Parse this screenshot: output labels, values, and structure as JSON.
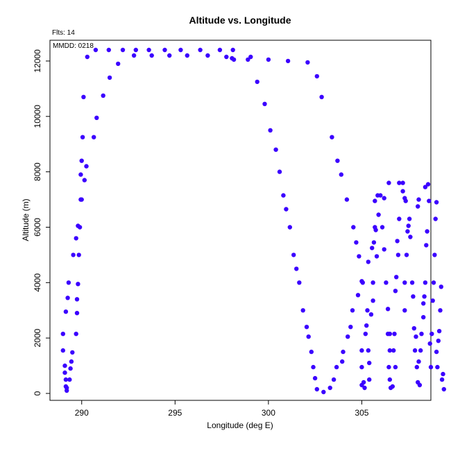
{
  "header": {
    "flights_label": "Flts: 14",
    "date_label": "MMDD: 0218"
  },
  "colors": {
    "point": "#3b00ff",
    "axis": "#000000",
    "background": "#ffffff"
  },
  "chart_data": {
    "type": "scatter",
    "title": "Altitude vs. Longitude",
    "xlabel": "Longitude (deg E)",
    "ylabel": "Altitude (m)",
    "xlim": [
      288.3,
      308.7
    ],
    "ylim": [
      -250,
      12750
    ],
    "xticks": [
      290,
      295,
      300,
      305
    ],
    "yticks": [
      0,
      2000,
      4000,
      6000,
      8000,
      10000,
      12000
    ],
    "grid": false,
    "legend": "none",
    "points": [
      [
        289.0,
        2150
      ],
      [
        289.0,
        1550
      ],
      [
        289.1,
        1000
      ],
      [
        289.1,
        750
      ],
      [
        289.15,
        500
      ],
      [
        289.15,
        250
      ],
      [
        289.2,
        100
      ],
      [
        289.2,
        200
      ],
      [
        289.15,
        2950
      ],
      [
        289.25,
        3450
      ],
      [
        289.3,
        4000
      ],
      [
        289.35,
        500
      ],
      [
        289.4,
        900
      ],
      [
        289.45,
        1150
      ],
      [
        289.5,
        1480
      ],
      [
        289.55,
        5000
      ],
      [
        289.7,
        5600
      ],
      [
        289.7,
        2150
      ],
      [
        289.75,
        2900
      ],
      [
        289.75,
        3400
      ],
      [
        289.8,
        3950
      ],
      [
        289.85,
        5000
      ],
      [
        289.8,
        6050
      ],
      [
        289.9,
        6000
      ],
      [
        289.95,
        7000
      ],
      [
        290.0,
        7000
      ],
      [
        289.95,
        7900
      ],
      [
        290.0,
        8400
      ],
      [
        290.05,
        9250
      ],
      [
        290.15,
        7700
      ],
      [
        290.25,
        8200
      ],
      [
        290.1,
        10700
      ],
      [
        290.3,
        12150
      ],
      [
        290.65,
        9250
      ],
      [
        290.8,
        9950
      ],
      [
        290.75,
        12400
      ],
      [
        291.15,
        10750
      ],
      [
        291.5,
        11400
      ],
      [
        291.45,
        12400
      ],
      [
        291.95,
        11900
      ],
      [
        292.2,
        12400
      ],
      [
        292.8,
        12200
      ],
      [
        292.9,
        12400
      ],
      [
        293.6,
        12400
      ],
      [
        293.75,
        12200
      ],
      [
        294.45,
        12400
      ],
      [
        294.7,
        12200
      ],
      [
        295.3,
        12400
      ],
      [
        295.65,
        12200
      ],
      [
        296.35,
        12400
      ],
      [
        296.75,
        12200
      ],
      [
        297.4,
        12400
      ],
      [
        297.75,
        12150
      ],
      [
        298.05,
        12100
      ],
      [
        298.1,
        12400
      ],
      [
        298.15,
        12050
      ],
      [
        298.9,
        12050
      ],
      [
        299.05,
        12150
      ],
      [
        299.4,
        11250
      ],
      [
        299.8,
        10450
      ],
      [
        300.0,
        12050
      ],
      [
        300.1,
        9500
      ],
      [
        300.4,
        8800
      ],
      [
        300.6,
        8000
      ],
      [
        300.8,
        7150
      ],
      [
        300.95,
        6650
      ],
      [
        301.05,
        12000
      ],
      [
        301.15,
        6000
      ],
      [
        301.35,
        5000
      ],
      [
        301.5,
        4500
      ],
      [
        301.65,
        4000
      ],
      [
        301.85,
        3000
      ],
      [
        302.05,
        2400
      ],
      [
        302.1,
        11950
      ],
      [
        302.15,
        2050
      ],
      [
        302.3,
        1500
      ],
      [
        302.4,
        950
      ],
      [
        302.5,
        550
      ],
      [
        302.6,
        150
      ],
      [
        302.6,
        11450
      ],
      [
        302.85,
        10700
      ],
      [
        302.95,
        50
      ],
      [
        303.3,
        200
      ],
      [
        303.4,
        9250
      ],
      [
        303.5,
        500
      ],
      [
        303.65,
        950
      ],
      [
        303.7,
        8400
      ],
      [
        303.9,
        7900
      ],
      [
        303.95,
        1150
      ],
      [
        304.0,
        1500
      ],
      [
        304.25,
        2050
      ],
      [
        304.2,
        7000
      ],
      [
        304.4,
        2400
      ],
      [
        304.5,
        3000
      ],
      [
        304.55,
        6000
      ],
      [
        304.7,
        5450
      ],
      [
        304.8,
        3550
      ],
      [
        304.85,
        4950
      ],
      [
        305.0,
        4050
      ],
      [
        305.0,
        1550
      ],
      [
        305.0,
        950
      ],
      [
        305.0,
        300
      ],
      [
        305.05,
        4000
      ],
      [
        305.1,
        400
      ],
      [
        305.15,
        200
      ],
      [
        305.2,
        2150
      ],
      [
        305.25,
        2450
      ],
      [
        305.3,
        3000
      ],
      [
        305.35,
        4750
      ],
      [
        305.35,
        1550
      ],
      [
        305.4,
        1100
      ],
      [
        305.4,
        500
      ],
      [
        305.5,
        2850
      ],
      [
        305.55,
        5250
      ],
      [
        305.6,
        3350
      ],
      [
        305.6,
        4000
      ],
      [
        305.65,
        5450
      ],
      [
        305.7,
        6000
      ],
      [
        305.75,
        5900
      ],
      [
        305.8,
        4950
      ],
      [
        305.9,
        6450
      ],
      [
        305.85,
        7150
      ],
      [
        305.7,
        6950
      ],
      [
        306.0,
        7150
      ],
      [
        306.1,
        6000
      ],
      [
        306.2,
        7050
      ],
      [
        306.2,
        5200
      ],
      [
        306.3,
        4000
      ],
      [
        306.4,
        2150
      ],
      [
        306.4,
        3050
      ],
      [
        306.45,
        950
      ],
      [
        306.5,
        1550
      ],
      [
        306.5,
        2150
      ],
      [
        306.5,
        500
      ],
      [
        306.55,
        200
      ],
      [
        306.45,
        7600
      ],
      [
        306.65,
        250
      ],
      [
        306.7,
        1550
      ],
      [
        306.75,
        2150
      ],
      [
        306.8,
        950
      ],
      [
        306.8,
        3700
      ],
      [
        306.85,
        4200
      ],
      [
        306.9,
        5500
      ],
      [
        306.95,
        5000
      ],
      [
        307.0,
        6300
      ],
      [
        307.0,
        7600
      ],
      [
        307.2,
        7300
      ],
      [
        307.2,
        7600
      ],
      [
        307.3,
        7050
      ],
      [
        307.35,
        6950
      ],
      [
        307.3,
        4000
      ],
      [
        307.3,
        3000
      ],
      [
        307.4,
        5000
      ],
      [
        307.45,
        5850
      ],
      [
        307.5,
        6050
      ],
      [
        307.55,
        6300
      ],
      [
        307.6,
        5650
      ],
      [
        307.7,
        4000
      ],
      [
        307.75,
        3500
      ],
      [
        307.8,
        2350
      ],
      [
        307.85,
        1550
      ],
      [
        307.9,
        2050
      ],
      [
        307.95,
        950
      ],
      [
        308.0,
        400
      ],
      [
        308.05,
        1150
      ],
      [
        308.0,
        6750
      ],
      [
        308.05,
        7000
      ],
      [
        308.1,
        300
      ],
      [
        308.15,
        1550
      ],
      [
        308.2,
        2150
      ],
      [
        308.3,
        2750
      ],
      [
        308.3,
        3250
      ],
      [
        308.35,
        3500
      ],
      [
        308.4,
        4000
      ],
      [
        308.45,
        5350
      ],
      [
        308.5,
        5850
      ],
      [
        308.4,
        7450
      ],
      [
        308.55,
        7550
      ],
      [
        308.6,
        6950
      ],
      [
        308.65,
        1800
      ],
      [
        308.7,
        950
      ],
      [
        308.75,
        2150
      ],
      [
        308.8,
        3350
      ],
      [
        308.85,
        4000
      ],
      [
        308.9,
        5000
      ],
      [
        308.95,
        6300
      ],
      [
        309.0,
        6900
      ],
      [
        309.0,
        1500
      ],
      [
        309.05,
        950
      ],
      [
        309.1,
        1900
      ],
      [
        309.15,
        2250
      ],
      [
        309.2,
        3000
      ],
      [
        309.25,
        3850
      ],
      [
        309.3,
        500
      ],
      [
        309.35,
        700
      ],
      [
        309.4,
        150
      ]
    ]
  }
}
